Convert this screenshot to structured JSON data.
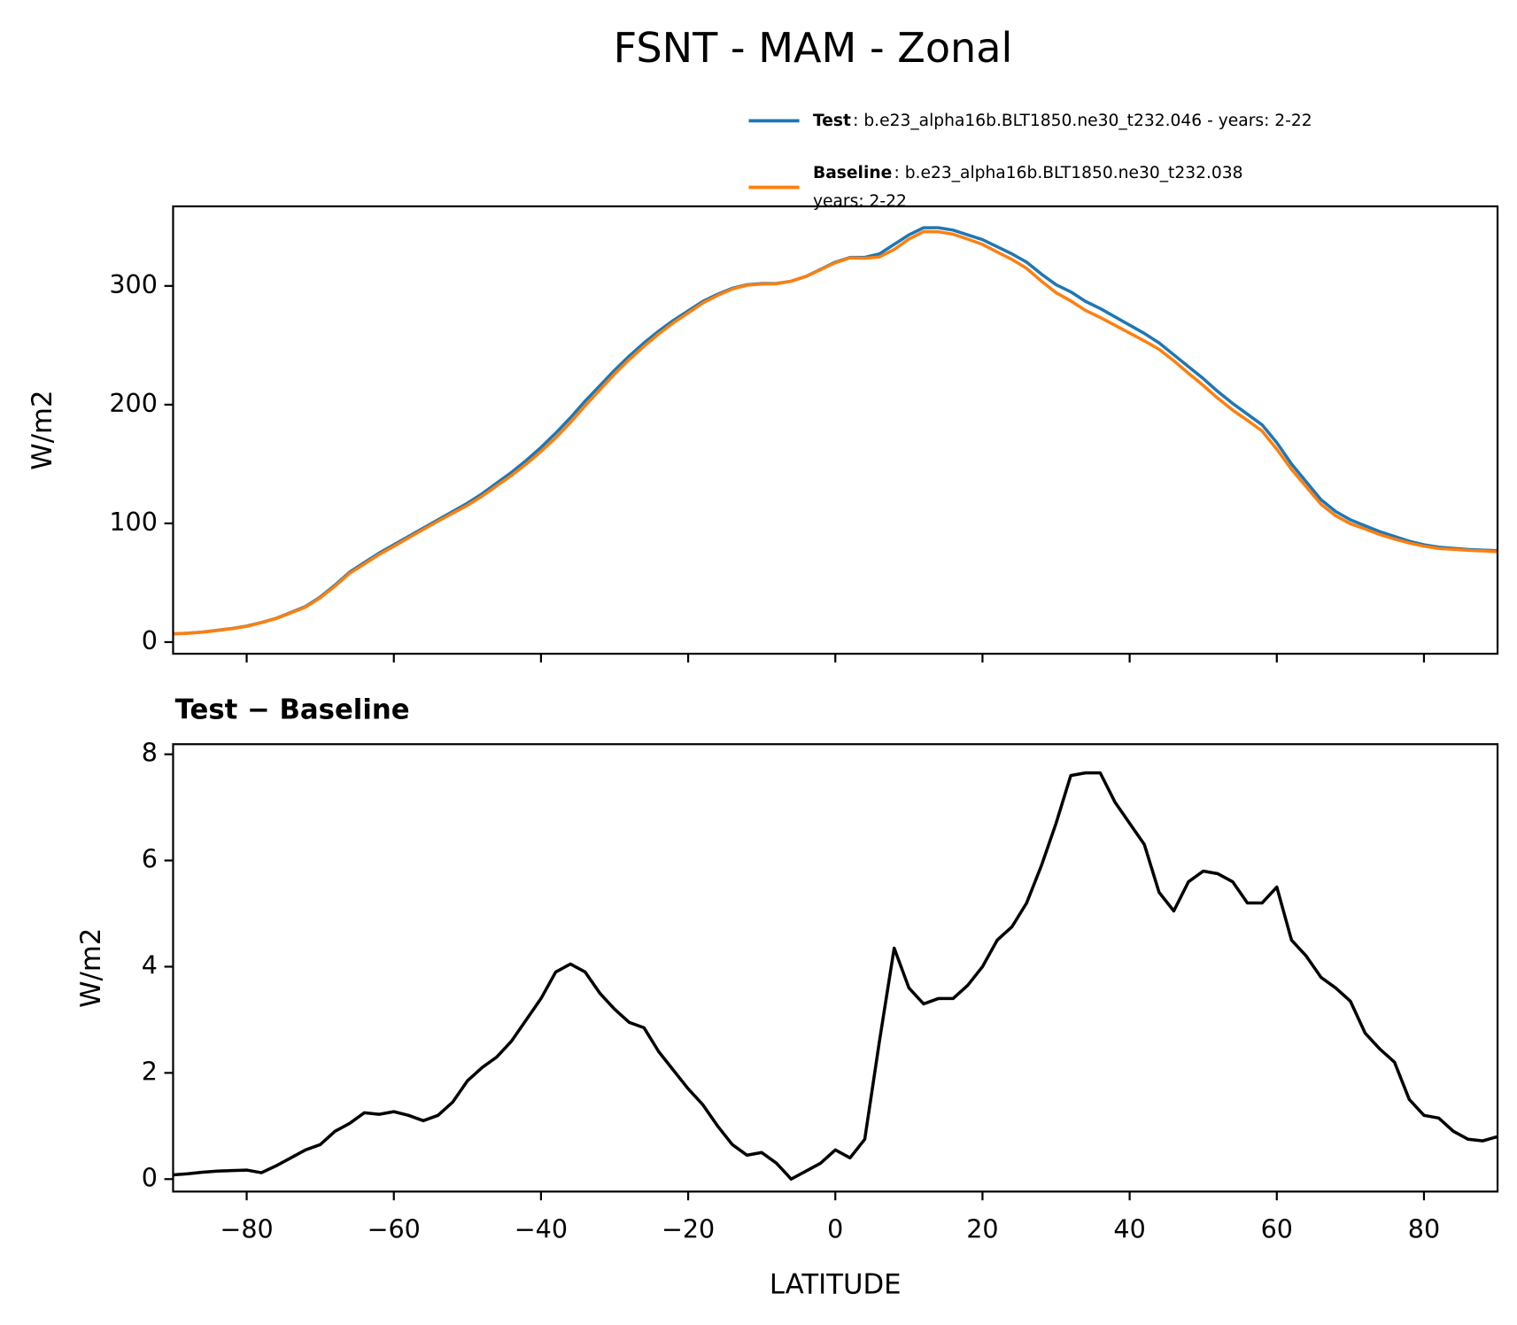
{
  "chart_data": [
    {
      "type": "line",
      "title": "FSNT - MAM - Zonal",
      "ylabel": "W/m2",
      "x": [
        -90,
        -88,
        -86,
        -84,
        -82,
        -80,
        -78,
        -76,
        -74,
        -72,
        -70,
        -68,
        -66,
        -64,
        -62,
        -60,
        -58,
        -56,
        -54,
        -52,
        -50,
        -48,
        -46,
        -44,
        -42,
        -40,
        -38,
        -36,
        -34,
        -32,
        -30,
        -28,
        -26,
        -24,
        -22,
        -20,
        -18,
        -16,
        -14,
        -12,
        -10,
        -8,
        -6,
        -4,
        -2,
        0,
        2,
        4,
        6,
        8,
        10,
        12,
        14,
        16,
        18,
        20,
        22,
        24,
        26,
        28,
        30,
        32,
        34,
        36,
        38,
        40,
        42,
        44,
        46,
        48,
        50,
        52,
        54,
        56,
        58,
        60,
        62,
        64,
        66,
        68,
        70,
        72,
        74,
        76,
        78,
        80,
        82,
        84,
        86,
        88,
        90
      ],
      "series": [
        {
          "name": "Test",
          "description": [
            ": b.e23_alpha16b.BLT1850.ne30_t232.046 - years: 2-22"
          ],
          "color": "#1f77b4",
          "values": [
            7,
            7.5,
            8.5,
            10,
            11.5,
            13.5,
            16.5,
            20,
            25,
            30,
            38,
            48,
            59,
            67,
            75,
            82,
            89,
            96,
            103,
            110,
            117,
            125,
            134,
            143,
            153,
            164,
            176,
            189,
            203,
            216,
            229,
            241,
            252,
            262,
            271,
            279,
            287,
            293,
            298,
            301,
            302,
            302,
            304,
            308,
            314,
            320,
            324,
            324,
            327,
            335,
            343,
            349,
            349,
            347,
            343,
            339,
            333,
            327,
            320,
            310,
            301,
            295,
            287,
            281,
            274,
            267,
            260,
            252,
            242,
            232,
            222,
            211,
            201,
            192,
            183,
            168,
            150,
            135,
            120,
            110,
            103,
            98,
            93,
            89,
            85,
            82,
            80,
            79,
            78,
            77.5,
            77
          ]
        },
        {
          "name": "Baseline",
          "description": [
            ": b.e23_alpha16b.BLT1850.ne30_t232.038",
            "years: 2-22"
          ],
          "color": "#ff7f0e",
          "values": [
            6.9,
            7.4,
            8.4,
            9.8,
            11.3,
            13.3,
            16.4,
            19.8,
            24.6,
            29.5,
            37.4,
            47.1,
            58,
            65.8,
            73.8,
            80.7,
            87.8,
            94.9,
            101.8,
            108.6,
            115.2,
            122.9,
            131.7,
            140.4,
            150,
            160.6,
            172.1,
            185,
            199.1,
            212.5,
            225.8,
            238,
            249.2,
            259.6,
            269,
            277.3,
            285.6,
            292,
            297.4,
            300.6,
            301.5,
            301.7,
            304,
            307.9,
            313.7,
            319.5,
            323.6,
            323.3,
            324.4,
            330.7,
            339.4,
            345.7,
            345.6,
            343.6,
            339.4,
            335,
            328.5,
            322.3,
            314.8,
            304.1,
            294.3,
            287.4,
            279.4,
            273.4,
            266.9,
            260.3,
            253.7,
            246.6,
            237,
            226.4,
            216.2,
            205.3,
            195.4,
            186.8,
            177.8,
            162.5,
            145.5,
            130.8,
            116.2,
            106.4,
            99.7,
            95.3,
            90.6,
            86.8,
            83.5,
            80.8,
            78.9,
            78.1,
            77.3,
            76.8,
            76.2
          ]
        }
      ],
      "xlim": [
        -90,
        90
      ],
      "xticks": [
        -80,
        -60,
        -40,
        -20,
        0,
        20,
        40,
        60,
        80
      ],
      "xtick_labels": false,
      "ylim": [
        -9.8,
        367
      ],
      "yticks": [
        0,
        100,
        200,
        300
      ],
      "legend": "upper right",
      "grid": false
    },
    {
      "type": "line",
      "title": "Test − Baseline",
      "xlabel": "LATITUDE",
      "ylabel": "W/m2",
      "x": [
        -90,
        -88,
        -86,
        -84,
        -82,
        -80,
        -78,
        -76,
        -74,
        -72,
        -70,
        -68,
        -66,
        -64,
        -62,
        -60,
        -58,
        -56,
        -54,
        -52,
        -50,
        -48,
        -46,
        -44,
        -42,
        -40,
        -38,
        -36,
        -34,
        -32,
        -30,
        -28,
        -26,
        -24,
        -22,
        -20,
        -18,
        -16,
        -14,
        -12,
        -10,
        -8,
        -6,
        -4,
        -2,
        0,
        2,
        4,
        6,
        8,
        10,
        12,
        14,
        16,
        18,
        20,
        22,
        24,
        26,
        28,
        30,
        32,
        34,
        36,
        38,
        40,
        42,
        44,
        46,
        48,
        50,
        52,
        54,
        56,
        58,
        60,
        62,
        64,
        66,
        68,
        70,
        72,
        74,
        76,
        78,
        80,
        82,
        84,
        86,
        88,
        90
      ],
      "series": [
        {
          "color": "#000000",
          "values": [
            0.08,
            0.1,
            0.13,
            0.15,
            0.16,
            0.17,
            0.12,
            0.25,
            0.4,
            0.55,
            0.65,
            0.9,
            1.05,
            1.25,
            1.22,
            1.27,
            1.2,
            1.1,
            1.2,
            1.45,
            1.85,
            2.1,
            2.3,
            2.6,
            3.0,
            3.4,
            3.9,
            4.05,
            3.9,
            3.5,
            3.2,
            2.95,
            2.85,
            2.4,
            2.05,
            1.7,
            1.4,
            1.0,
            0.65,
            0.45,
            0.5,
            0.3,
            0.0,
            0.15,
            0.3,
            0.55,
            0.4,
            0.75,
            2.6,
            4.35,
            3.6,
            3.3,
            3.4,
            3.4,
            3.65,
            4.0,
            4.5,
            4.75,
            5.2,
            5.9,
            6.7,
            7.6,
            7.65,
            7.65,
            7.1,
            6.7,
            6.3,
            5.4,
            5.05,
            5.6,
            5.8,
            5.75,
            5.6,
            5.2,
            5.2,
            5.5,
            4.5,
            4.2,
            3.8,
            3.6,
            3.35,
            2.75,
            2.45,
            2.2,
            1.5,
            1.2,
            1.15,
            0.9,
            0.75,
            0.72,
            0.8
          ]
        }
      ],
      "xlim": [
        -90,
        90
      ],
      "xticks": [
        {
          "value": -80,
          "label": "−80"
        },
        {
          "value": -60,
          "label": "−60"
        },
        {
          "value": -40,
          "label": "−40"
        },
        {
          "value": -20,
          "label": "−20"
        },
        0,
        20,
        40,
        60,
        80
      ],
      "xtick_labels": true,
      "ylim": [
        -0.235,
        8.19
      ],
      "yticks": [
        0,
        2,
        4,
        6,
        8
      ],
      "grid": false
    }
  ]
}
